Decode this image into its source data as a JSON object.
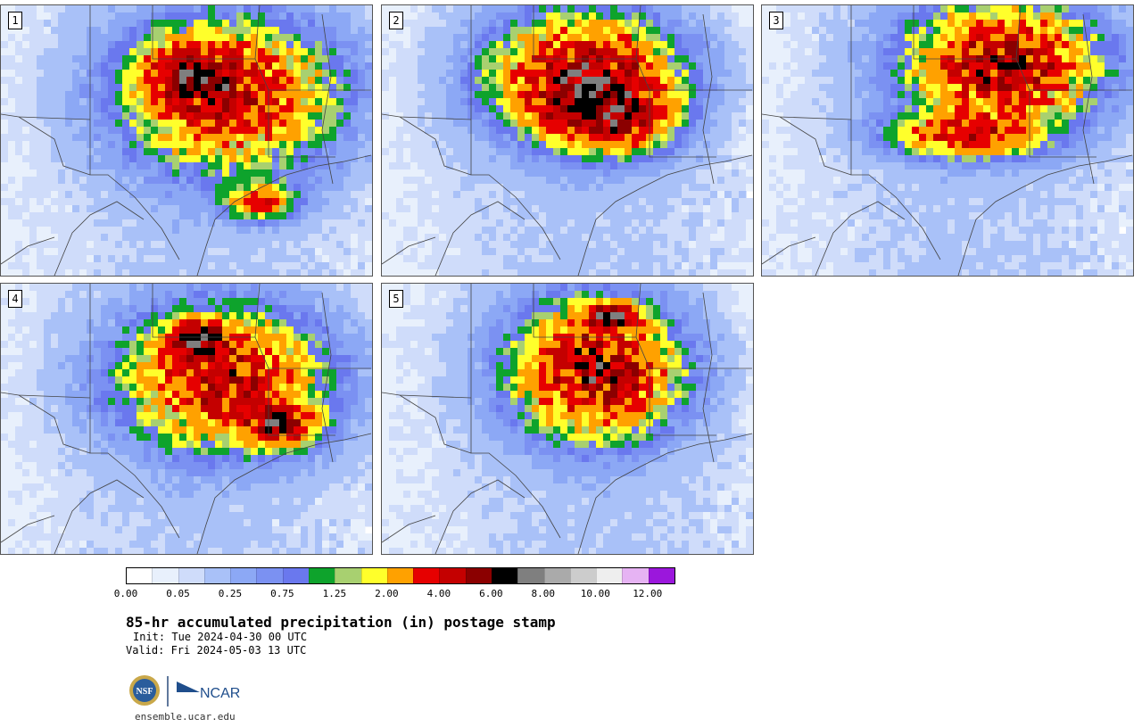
{
  "panels": [
    {
      "number": "1",
      "seed": 11,
      "blobs": [
        [
          0.62,
          0.33,
          0.28,
          0.27,
          1.0
        ],
        [
          0.5,
          0.25,
          0.12,
          0.12,
          0.8
        ],
        [
          0.7,
          0.72,
          0.1,
          0.07,
          0.7
        ]
      ]
    },
    {
      "number": "2",
      "seed": 23,
      "blobs": [
        [
          0.55,
          0.27,
          0.24,
          0.22,
          1.3
        ],
        [
          0.62,
          0.42,
          0.16,
          0.12,
          0.9
        ]
      ]
    },
    {
      "number": "3",
      "seed": 37,
      "blobs": [
        [
          0.65,
          0.22,
          0.25,
          0.23,
          1.15
        ],
        [
          0.55,
          0.48,
          0.2,
          0.08,
          0.8
        ]
      ]
    },
    {
      "number": "4",
      "seed": 41,
      "blobs": [
        [
          0.6,
          0.35,
          0.27,
          0.25,
          1.0
        ],
        [
          0.53,
          0.2,
          0.07,
          0.07,
          1.3
        ],
        [
          0.75,
          0.52,
          0.1,
          0.08,
          1.1
        ]
      ]
    },
    {
      "number": "5",
      "seed": 53,
      "blobs": [
        [
          0.58,
          0.32,
          0.22,
          0.24,
          1.2
        ],
        [
          0.62,
          0.12,
          0.07,
          0.05,
          1.4
        ]
      ]
    }
  ],
  "colorbar": {
    "colors": [
      "#ffffff",
      "#e8f0fc",
      "#cfdcfa",
      "#a9c1f8",
      "#8ca8f5",
      "#7b91f2",
      "#6a78ee",
      "#0ea32c",
      "#a8d070",
      "#ffff2b",
      "#ffa100",
      "#e60000",
      "#c40000",
      "#8b0000",
      "#000000",
      "#7f7f7f",
      "#aaaaaa",
      "#cccccc",
      "#eeeeee",
      "#e6b3f3",
      "#9b17dc"
    ],
    "tick_labels": [
      "0.00",
      "0.05",
      "0.25",
      "0.75",
      "1.25",
      "2.00",
      "4.00",
      "6.00",
      "8.00",
      "10.00",
      "12.00"
    ]
  },
  "title": "85-hr accumulated precipitation (in) postage stamp",
  "init": "Init: Tue 2024-04-30 00 UTC",
  "valid": "Valid: Fri 2024-05-03 13 UTC",
  "logos": {
    "nsf_text": "NSF",
    "ncar_text": "NCAR"
  },
  "url": "ensemble.ucar.edu"
}
